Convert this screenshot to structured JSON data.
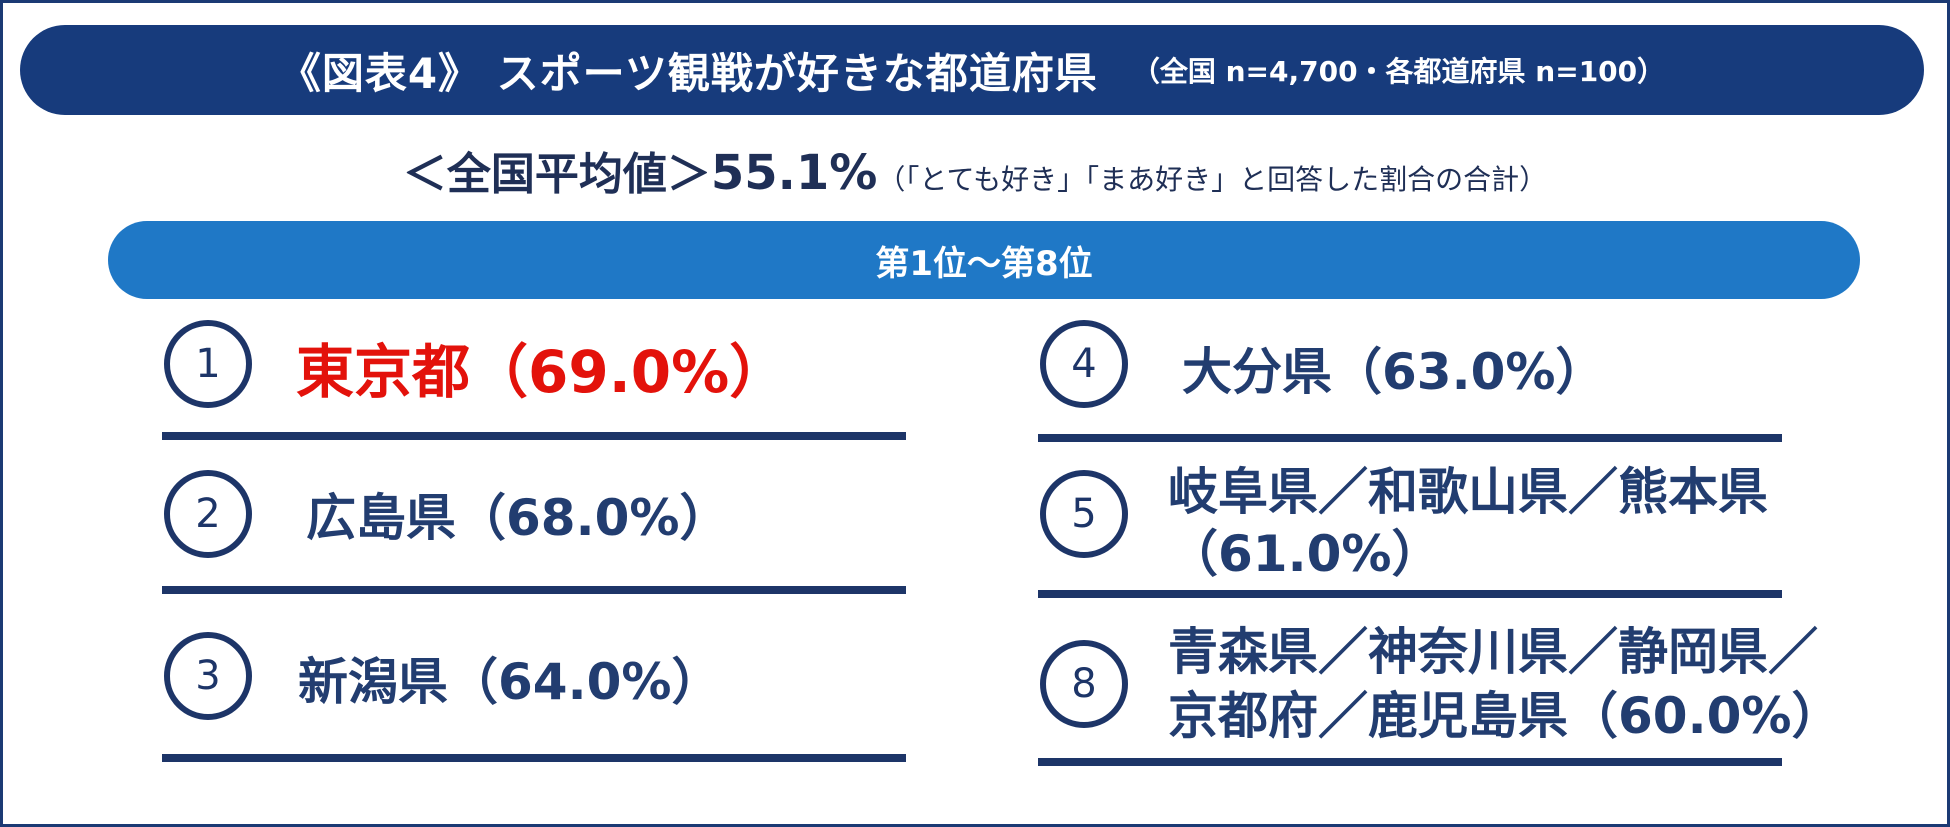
{
  "header": {
    "title": "《図表4》 スポーツ観戦が好きな都道府県",
    "sample": "（全国 n=4,700・各都道府県 n=100）"
  },
  "average": {
    "label": "＜全国平均値＞",
    "value": "55.1%",
    "note": "（「とても好き」「まあ好き」と回答した割合の合計）"
  },
  "rank_range": "第1位～第8位",
  "rankings": [
    {
      "rank": "1",
      "text": "東京都（69.0%）"
    },
    {
      "rank": "2",
      "text": "広島県（68.0%）"
    },
    {
      "rank": "3",
      "text": "新潟県（64.0%）"
    },
    {
      "rank": "4",
      "text": "大分県（63.0%）"
    },
    {
      "rank": "5",
      "line1": "岐阜県／和歌山県／熊本県",
      "line2": "（61.0%）"
    },
    {
      "rank": "8",
      "line1": "青森県／神奈川県／静岡県／",
      "line2": "京都府／鹿児島県（60.0%）"
    }
  ],
  "colors": {
    "title_bar": "#173b7c",
    "rank_bar": "#1f78c6",
    "first_place": "#e3120b",
    "text": "#223d70"
  }
}
